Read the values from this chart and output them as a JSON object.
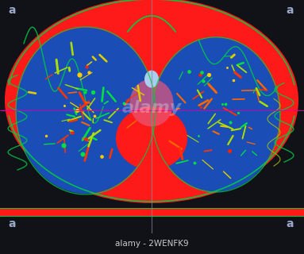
{
  "fig_width": 3.83,
  "fig_height": 3.2,
  "dpi": 100,
  "bg_color": "#1635a0",
  "chest_color": "#ff1a1a",
  "lung_color": "#1a4db5",
  "skin_line_color": "#00cc44",
  "crosshair_h_color": "#dd00aa",
  "crosshair_v_color": "#dd00aa",
  "divider_color": "#555588",
  "bottom_stripe_color": "#ff1a1a",
  "corner_label": "a",
  "corner_label_color": "#aabbdd",
  "bottom_label": "alamy - 2WENFK9",
  "bottom_bg": "#1a1a1a",
  "bottom_text_color": "#cccccc",
  "watermark": "alamy",
  "watermark_color": "#ffffff"
}
